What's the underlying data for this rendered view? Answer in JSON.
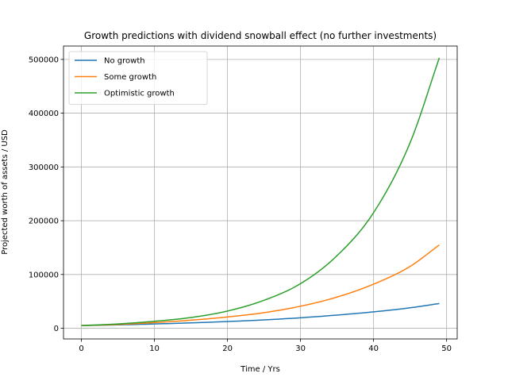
{
  "chart_data": {
    "type": "line",
    "title": "Growth predictions with dividend snowball effect (no further investments)",
    "xlabel": "Time / Yrs",
    "ylabel": "Projected worth of assets / USD",
    "xlim": [
      -2.45,
      51.45
    ],
    "ylim": [
      -19870,
      524870
    ],
    "xticks": [
      0,
      10,
      20,
      30,
      40,
      50
    ],
    "yticks": [
      0,
      100000,
      200000,
      300000,
      400000,
      500000
    ],
    "grid": true,
    "legend_position": "top-left",
    "x": [
      0,
      5,
      10,
      15,
      20,
      25,
      30,
      35,
      40,
      45,
      49
    ],
    "series": [
      {
        "name": "No growth",
        "color": "#1f77b4",
        "values": [
          5000,
          6250,
          8000,
          10000,
          12500,
          15500,
          19500,
          24500,
          30500,
          38000,
          46000
        ]
      },
      {
        "name": "Some growth",
        "color": "#ff7f0e",
        "values": [
          5000,
          7000,
          10500,
          15000,
          21000,
          29000,
          41000,
          58000,
          82000,
          115000,
          155000
        ]
      },
      {
        "name": "Optimistic growth",
        "color": "#2ca02c",
        "values": [
          5000,
          8000,
          13000,
          20000,
          32000,
          52000,
          83000,
          135000,
          215000,
          345000,
          503000
        ]
      }
    ]
  }
}
